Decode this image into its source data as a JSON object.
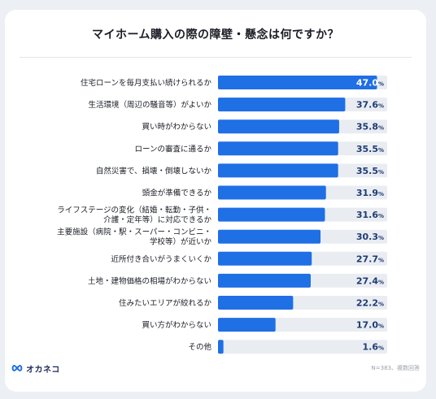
{
  "title": "マイホーム購入の際の障壁・懸念は何ですか？",
  "brand": "オカネコ",
  "note": "N=383、複数回答",
  "colors": {
    "bar": "#1f6fe5",
    "track": "#e9edf2",
    "value_inside": "#ffffff",
    "value_outside": "#1f3b73"
  },
  "chart_data": {
    "type": "bar",
    "orientation": "horizontal",
    "unit": "%",
    "xlim": [
      0,
      50
    ],
    "categories": [
      [
        "住宅ローンを毎月支払い続けられるか"
      ],
      [
        "生活環境（周辺の騒音等）がよいか"
      ],
      [
        "買い時がわからない"
      ],
      [
        "ローンの審査に通るか"
      ],
      [
        "自然災害で、損壊・倒壊しないか"
      ],
      [
        "頭金が準備できるか"
      ],
      [
        "ライフステージの変化（結婚・転勤・子供・",
        "介護・定年等）に対応できるか"
      ],
      [
        "主要施設（病院・駅・スーパー・コンビニ・",
        "学校等）が近いか"
      ],
      [
        "近所付き合いがうまくいくか"
      ],
      [
        "土地・建物価格の相場がわからない"
      ],
      [
        "住みたいエリアが絞れるか"
      ],
      [
        "買い方がわからない"
      ],
      [
        "その他"
      ]
    ],
    "values": [
      47.0,
      37.6,
      35.8,
      35.5,
      35.5,
      31.9,
      31.6,
      30.3,
      27.7,
      27.4,
      22.2,
      17.0,
      1.6
    ]
  }
}
